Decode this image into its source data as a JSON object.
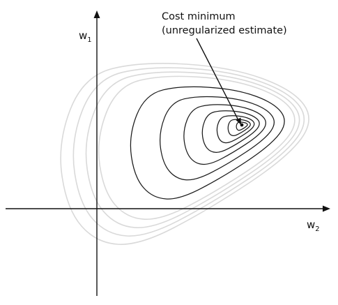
{
  "axes": {
    "vertical": {
      "label": "w",
      "subscript": "1"
    },
    "horizontal": {
      "label": "w",
      "subscript": "2"
    }
  },
  "annotation": {
    "line1": "Cost minimum",
    "line2": "(unregularized estimate)"
  },
  "contours": {
    "light_count": 4,
    "dark_count": 7
  },
  "colors": {
    "axis": "#111111",
    "light_contour": "#d9d9d9",
    "dark_contour": "#1a1a1a"
  }
}
